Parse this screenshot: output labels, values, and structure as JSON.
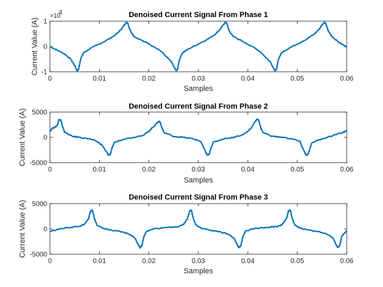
{
  "chart_data": [
    {
      "type": "line",
      "title": "Denoised Current Signal From Phase 1",
      "xlabel": "Samples",
      "ylabel": "Current Value (A)",
      "xlim": [
        0,
        0.06
      ],
      "ylim": [
        -10000,
        10000
      ],
      "xticks": [
        0,
        0.01,
        0.02,
        0.03,
        0.04,
        0.05,
        0.06
      ],
      "xtick_labels": [
        "0",
        "0.01",
        "0.02",
        "0.03",
        "0.04",
        "0.05",
        "0.06"
      ],
      "yticks": [
        -10000,
        0,
        10000
      ],
      "ytick_labels": [
        "-1",
        "0",
        "1"
      ],
      "y_exponent_label": "×10",
      "y_exponent_power": "4",
      "grid": false,
      "series": [
        {
          "color": "#0072BD",
          "x": [
            0,
            0.0015,
            0.003,
            0.0042,
            0.005,
            0.0055,
            0.0058,
            0.0062,
            0.0068,
            0.008,
            0.01,
            0.012,
            0.0135,
            0.0145,
            0.015,
            0.0155,
            0.0158,
            0.016,
            0.0163,
            0.017,
            0.02,
            0.0225,
            0.0245,
            0.0255,
            0.0258,
            0.0262,
            0.0268,
            0.028,
            0.03,
            0.032,
            0.0335,
            0.0345,
            0.035,
            0.0355,
            0.0358,
            0.036,
            0.0363,
            0.037,
            0.04,
            0.0425,
            0.0445,
            0.0455,
            0.0458,
            0.0462,
            0.0468,
            0.048,
            0.05,
            0.052,
            0.0535,
            0.0545,
            0.055,
            0.0555,
            0.0558,
            0.056,
            0.0563,
            0.057,
            0.0585,
            0.06
          ],
          "y": [
            0,
            -1500,
            -3000,
            -5000,
            -7500,
            -9600,
            -9000,
            -5000,
            -2500,
            -1000,
            1000,
            3000,
            5000,
            7000,
            8500,
            9600,
            9000,
            7500,
            6000,
            4000,
            1000,
            -2000,
            -6000,
            -9600,
            -9000,
            -5000,
            -2500,
            -1000,
            1000,
            3000,
            5000,
            7000,
            8500,
            9600,
            9000,
            7500,
            6000,
            4000,
            1000,
            -2000,
            -6000,
            -9600,
            -9000,
            -5000,
            -2500,
            -1000,
            1000,
            3000,
            5000,
            7000,
            8500,
            9600,
            9000,
            7500,
            6000,
            4000,
            1500,
            -200
          ]
        }
      ]
    },
    {
      "type": "line",
      "title": "Denoised Current Signal From Phase 2",
      "xlabel": "Samples",
      "ylabel": "Current Value (A)",
      "xlim": [
        0,
        0.06
      ],
      "ylim": [
        -5000,
        5000
      ],
      "xticks": [
        0,
        0.01,
        0.02,
        0.03,
        0.04,
        0.05,
        0.06
      ],
      "xtick_labels": [
        "0",
        "0.01",
        "0.02",
        "0.03",
        "0.04",
        "0.05",
        "0.06"
      ],
      "yticks": [
        -5000,
        0,
        5000
      ],
      "ytick_labels": [
        "-5000",
        "0",
        "5000"
      ],
      "grid": false,
      "series": [
        {
          "color": "#0072BD",
          "x": [
            0,
            0.0005,
            0.001,
            0.0015,
            0.0018,
            0.0022,
            0.0026,
            0.003,
            0.0045,
            0.006,
            0.008,
            0.0095,
            0.0105,
            0.0115,
            0.0118,
            0.0122,
            0.0126,
            0.013,
            0.015,
            0.017,
            0.019,
            0.02,
            0.0208,
            0.0218,
            0.0222,
            0.0226,
            0.023,
            0.025,
            0.027,
            0.029,
            0.0305,
            0.0315,
            0.0318,
            0.0322,
            0.0326,
            0.033,
            0.035,
            0.037,
            0.039,
            0.04,
            0.0408,
            0.0418,
            0.0422,
            0.0426,
            0.043,
            0.045,
            0.047,
            0.049,
            0.0505,
            0.0515,
            0.0518,
            0.0522,
            0.0526,
            0.053,
            0.055,
            0.057,
            0.059,
            0.06
          ],
          "y": [
            1200,
            1800,
            2000,
            2400,
            3500,
            3400,
            2000,
            1000,
            200,
            0,
            -300,
            -800,
            -1500,
            -3000,
            -3500,
            -3400,
            -2000,
            -1000,
            -300,
            0,
            500,
            1200,
            2000,
            3000,
            3200,
            2000,
            1000,
            200,
            0,
            -300,
            -800,
            -3000,
            -3500,
            -3400,
            -2000,
            -1000,
            -300,
            0,
            500,
            1200,
            2000,
            3600,
            3400,
            2000,
            1000,
            200,
            0,
            -300,
            -800,
            -3000,
            -3500,
            -3400,
            -2000,
            -1000,
            -300,
            300,
            900,
            1300
          ]
        }
      ]
    },
    {
      "type": "line",
      "title": "Denoised Current Signal From Phase 3",
      "xlabel": "Samples",
      "ylabel": "Current Value (A)",
      "xlim": [
        0,
        0.06
      ],
      "ylim": [
        -5000,
        5000
      ],
      "xticks": [
        0,
        0.01,
        0.02,
        0.03,
        0.04,
        0.05,
        0.06
      ],
      "xtick_labels": [
        "0",
        "0.01",
        "0.02",
        "0.03",
        "0.04",
        "0.05",
        "0.06"
      ],
      "yticks": [
        -5000,
        0,
        5000
      ],
      "ytick_labels": [
        "-5000",
        "0",
        "5000"
      ],
      "grid": false,
      "series": [
        {
          "color": "#0072BD",
          "x": [
            0,
            0.002,
            0.004,
            0.006,
            0.007,
            0.0078,
            0.0082,
            0.0086,
            0.009,
            0.0095,
            0.0105,
            0.0125,
            0.0145,
            0.016,
            0.0172,
            0.0178,
            0.0182,
            0.0186,
            0.019,
            0.0195,
            0.021,
            0.024,
            0.026,
            0.027,
            0.0278,
            0.0282,
            0.0286,
            0.029,
            0.0295,
            0.0305,
            0.0325,
            0.0345,
            0.036,
            0.0372,
            0.0378,
            0.0382,
            0.0386,
            0.039,
            0.0395,
            0.041,
            0.044,
            0.046,
            0.047,
            0.0478,
            0.0482,
            0.0486,
            0.049,
            0.0495,
            0.0505,
            0.0525,
            0.0545,
            0.056,
            0.0572,
            0.0578,
            0.0582,
            0.0586,
            0.059,
            0.0595,
            0.06
          ],
          "y": [
            -500,
            0,
            300,
            500,
            900,
            2000,
            3500,
            3700,
            2000,
            800,
            200,
            -300,
            -600,
            -1000,
            -1800,
            -3000,
            -3700,
            -3300,
            -1500,
            -500,
            0,
            300,
            500,
            900,
            2000,
            3500,
            3700,
            2000,
            800,
            200,
            -300,
            -600,
            -1000,
            -1800,
            -3000,
            -3700,
            -3300,
            -1500,
            -500,
            0,
            300,
            500,
            900,
            2000,
            3500,
            3700,
            2000,
            800,
            200,
            -300,
            -600,
            -1000,
            -1800,
            -3000,
            -3700,
            -3300,
            -1500,
            -900,
            -400
          ]
        }
      ]
    }
  ]
}
